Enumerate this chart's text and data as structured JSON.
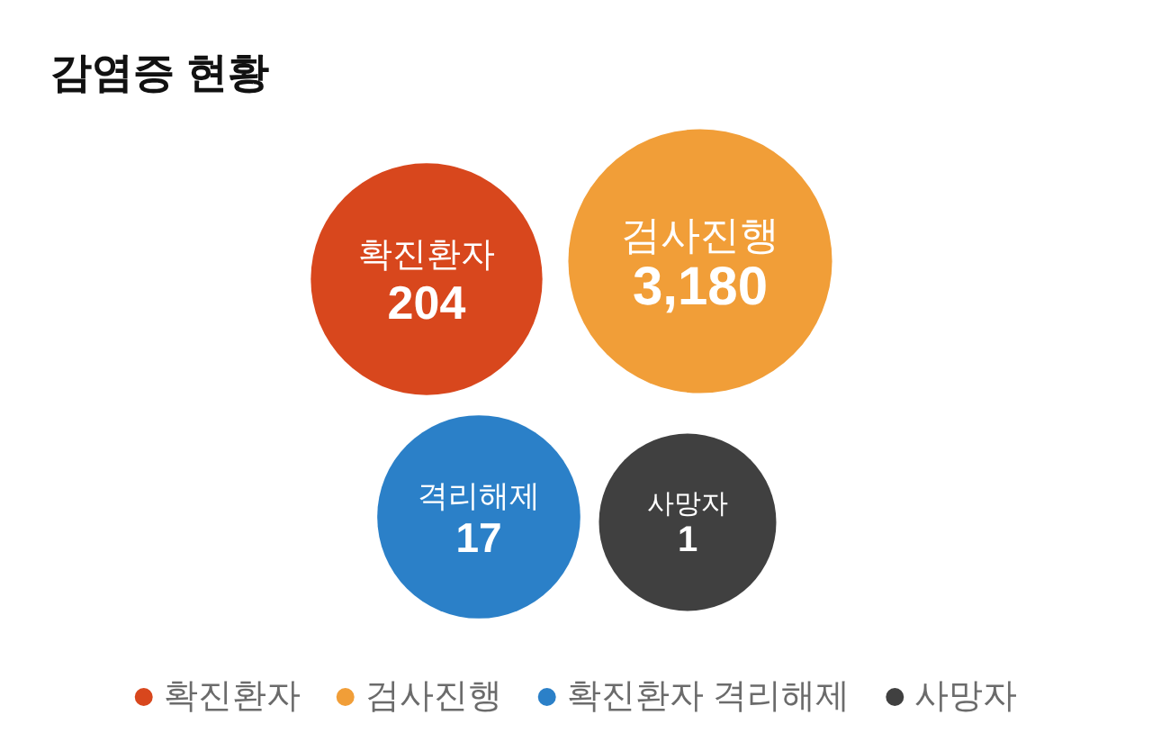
{
  "chart_data": {
    "type": "other",
    "title": "감염증 현황",
    "categories": [
      "확진환자",
      "검사진행",
      "격리해제",
      "사망자"
    ],
    "series": [
      {
        "name": "확진환자",
        "color": "#d8471d",
        "values": [
          204,
          null,
          null,
          null
        ],
        "value_labels": [
          "204",
          null,
          null,
          null
        ]
      },
      {
        "name": "검사진행",
        "color": "#f19e38",
        "values": [
          null,
          3180,
          null,
          null
        ],
        "value_labels": [
          null,
          "3,180",
          null,
          null
        ]
      },
      {
        "name": "확진환자 격리해제",
        "color": "#2b80c8",
        "values": [
          null,
          null,
          17,
          null
        ],
        "value_labels": [
          null,
          null,
          "17",
          null
        ]
      },
      {
        "name": "사망자",
        "color": "#404040",
        "values": [
          null,
          null,
          null,
          1
        ],
        "value_labels": [
          null,
          null,
          null,
          "1"
        ]
      }
    ],
    "legend": "bottom"
  }
}
